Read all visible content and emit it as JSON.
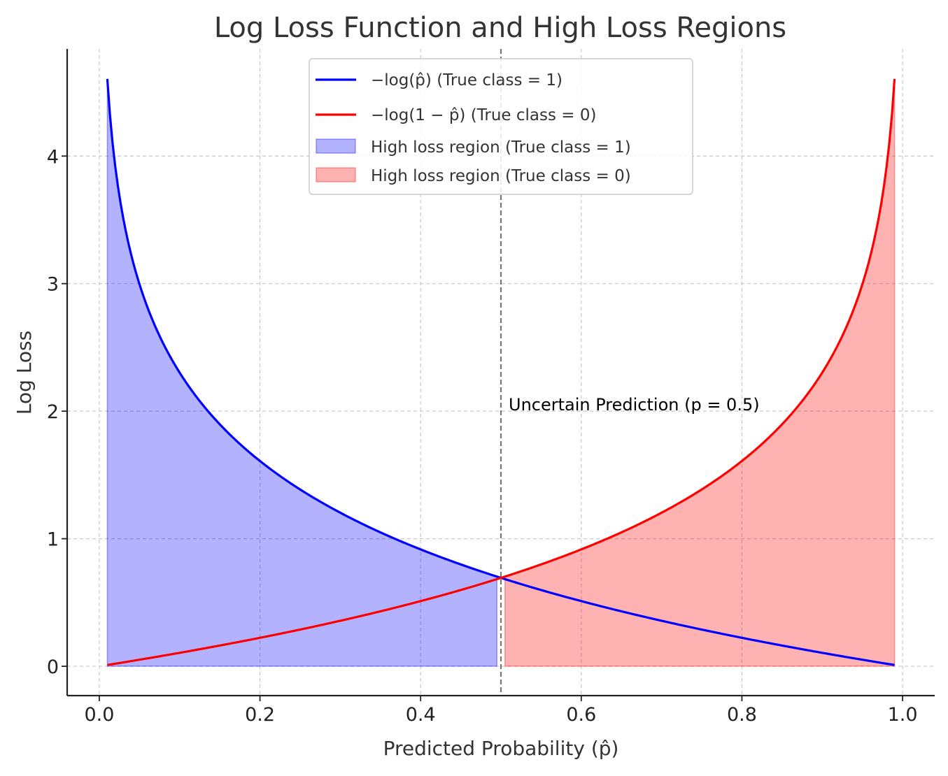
{
  "chart_data": {
    "type": "line",
    "title": "Log Loss Function and High Loss Regions",
    "xlabel": "Predicted Probability (p̂)",
    "ylabel": "Log Loss",
    "xlim": [
      -0.04,
      1.04
    ],
    "ylim": [
      -0.23,
      4.84
    ],
    "xticks": [
      0.0,
      0.2,
      0.4,
      0.6,
      0.8,
      1.0
    ],
    "xtick_labels": [
      "0.0",
      "0.2",
      "0.4",
      "0.6",
      "0.8",
      "1.0"
    ],
    "yticks": [
      0,
      1,
      2,
      3,
      4
    ],
    "ytick_labels": [
      "0",
      "1",
      "2",
      "3",
      "4"
    ],
    "grid": true,
    "legend_position": "top-center",
    "x": [
      0.01,
      0.02,
      0.03,
      0.05,
      0.075,
      0.1,
      0.15,
      0.2,
      0.25,
      0.3,
      0.35,
      0.4,
      0.45,
      0.5,
      0.55,
      0.6,
      0.65,
      0.7,
      0.75,
      0.8,
      0.85,
      0.9,
      0.925,
      0.95,
      0.97,
      0.98,
      0.99
    ],
    "series": [
      {
        "name": "−log(p̂) (True class = 1)",
        "color": "#0000ff",
        "values": [
          4.61,
          3.91,
          3.51,
          3.0,
          2.59,
          2.3,
          1.9,
          1.61,
          1.39,
          1.2,
          1.05,
          0.92,
          0.8,
          0.69,
          0.6,
          0.51,
          0.43,
          0.36,
          0.29,
          0.22,
          0.16,
          0.11,
          0.08,
          0.05,
          0.03,
          0.02,
          0.01
        ]
      },
      {
        "name": "−log(1 − p̂) (True class = 0)",
        "color": "#ff0000",
        "values": [
          0.01,
          0.02,
          0.03,
          0.05,
          0.08,
          0.11,
          0.16,
          0.22,
          0.29,
          0.36,
          0.43,
          0.51,
          0.6,
          0.69,
          0.8,
          0.92,
          1.05,
          1.2,
          1.39,
          1.61,
          1.9,
          2.3,
          2.59,
          3.0,
          3.51,
          3.91,
          4.61
        ]
      }
    ],
    "regions": [
      {
        "name": "High loss region (True class = 1)",
        "series": 0,
        "x_range": [
          0.01,
          0.495
        ],
        "color": "#0000ff",
        "opacity": 0.3
      },
      {
        "name": "High loss region (True class = 0)",
        "series": 1,
        "x_range": [
          0.505,
          0.99
        ],
        "color": "#ff0000",
        "opacity": 0.3
      }
    ],
    "vline": {
      "x": 0.5,
      "style": "dashed",
      "color": "#777777"
    },
    "annotation": {
      "text": "Uncertain Prediction (p = 0.5)",
      "x": 0.51,
      "y": 2.0
    }
  }
}
